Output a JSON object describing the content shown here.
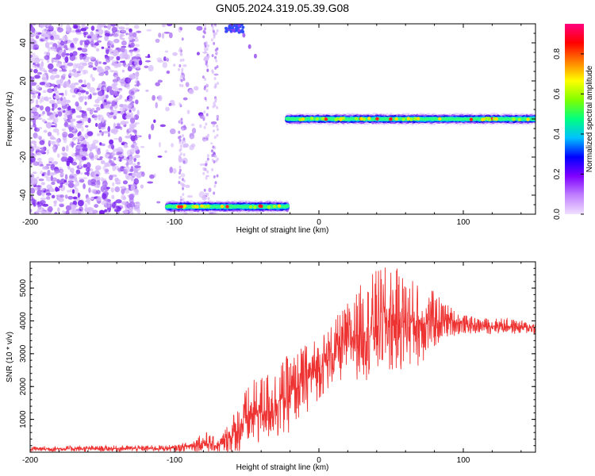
{
  "title": "GN05.2024.319.05.39.G08",
  "chart_data": [
    {
      "type": "heatmap",
      "xlabel": "Height of straight line (km)",
      "ylabel": "Frequency (Hz)",
      "xlim": [
        -200,
        150
      ],
      "ylim": [
        -50,
        50
      ],
      "xticks": [
        -200,
        -100,
        0,
        100
      ],
      "yticks": [
        -40,
        -20,
        0,
        20,
        40
      ],
      "grid": false,
      "colorbar": {
        "label": "Normalized spectral amplitude",
        "range": [
          0,
          0.95
        ],
        "ticks": [
          0.0,
          0.2,
          0.4,
          0.6,
          0.8
        ],
        "colormap": [
          "#f0e0ff",
          "#c080ff",
          "#8000ff",
          "#0000ff",
          "#00c0ff",
          "#00ff80",
          "#80ff00",
          "#ffff00",
          "#ff8000",
          "#ff0000",
          "#ff0080"
        ]
      },
      "features": [
        {
          "name": "noise-scatter",
          "x_range": [
            -200,
            -70
          ],
          "y_range": [
            -50,
            50
          ],
          "amplitude": 0.15
        },
        {
          "name": "aliased-signal-top",
          "x_range": [
            -65,
            -52
          ],
          "y_range": [
            44,
            50
          ],
          "amplitude": 0.25
        },
        {
          "name": "aliased-signal-bottom",
          "x_range": [
            -105,
            -22
          ],
          "y_center": -46,
          "amplitude": 0.75
        },
        {
          "name": "carrier-line",
          "x_range": [
            -22,
            150
          ],
          "y_center": 0,
          "amplitude": 0.9
        }
      ]
    },
    {
      "type": "line",
      "xlabel": "Height of straight line (km)",
      "ylabel": "SNR (10 * v/v)",
      "xlim": [
        -200,
        150
      ],
      "ylim": [
        0,
        5800
      ],
      "xticks": [
        -200,
        -100,
        0,
        100
      ],
      "yticks": [
        1000,
        2000,
        3000,
        4000,
        5000
      ],
      "grid": false,
      "series": [
        {
          "color": "#ee3333",
          "envelope": {
            "x": [
              -200,
              -150,
              -100,
              -90,
              -80,
              -70,
              -60,
              -50,
              -40,
              -30,
              -20,
              -10,
              0,
              10,
              20,
              30,
              40,
              50,
              60,
              70,
              80,
              90,
              100,
              110,
              120,
              130,
              140,
              150
            ],
            "mean": [
              100,
              110,
              120,
              180,
              300,
              180,
              500,
              1000,
              1300,
              1500,
              1800,
              2200,
              2600,
              3000,
              3400,
              3700,
              3900,
              4000,
              4000,
              3900,
              4000,
              4000,
              3900,
              3850,
              3850,
              3850,
              3800,
              3800
            ],
            "amp": [
              90,
              90,
              100,
              150,
              400,
              200,
              700,
              1000,
              1100,
              1200,
              1200,
              1100,
              1000,
              1000,
              1200,
              1500,
              1700,
              1700,
              1500,
              1300,
              900,
              500,
              300,
              250,
              250,
              250,
              220,
              200
            ]
          }
        }
      ]
    }
  ]
}
